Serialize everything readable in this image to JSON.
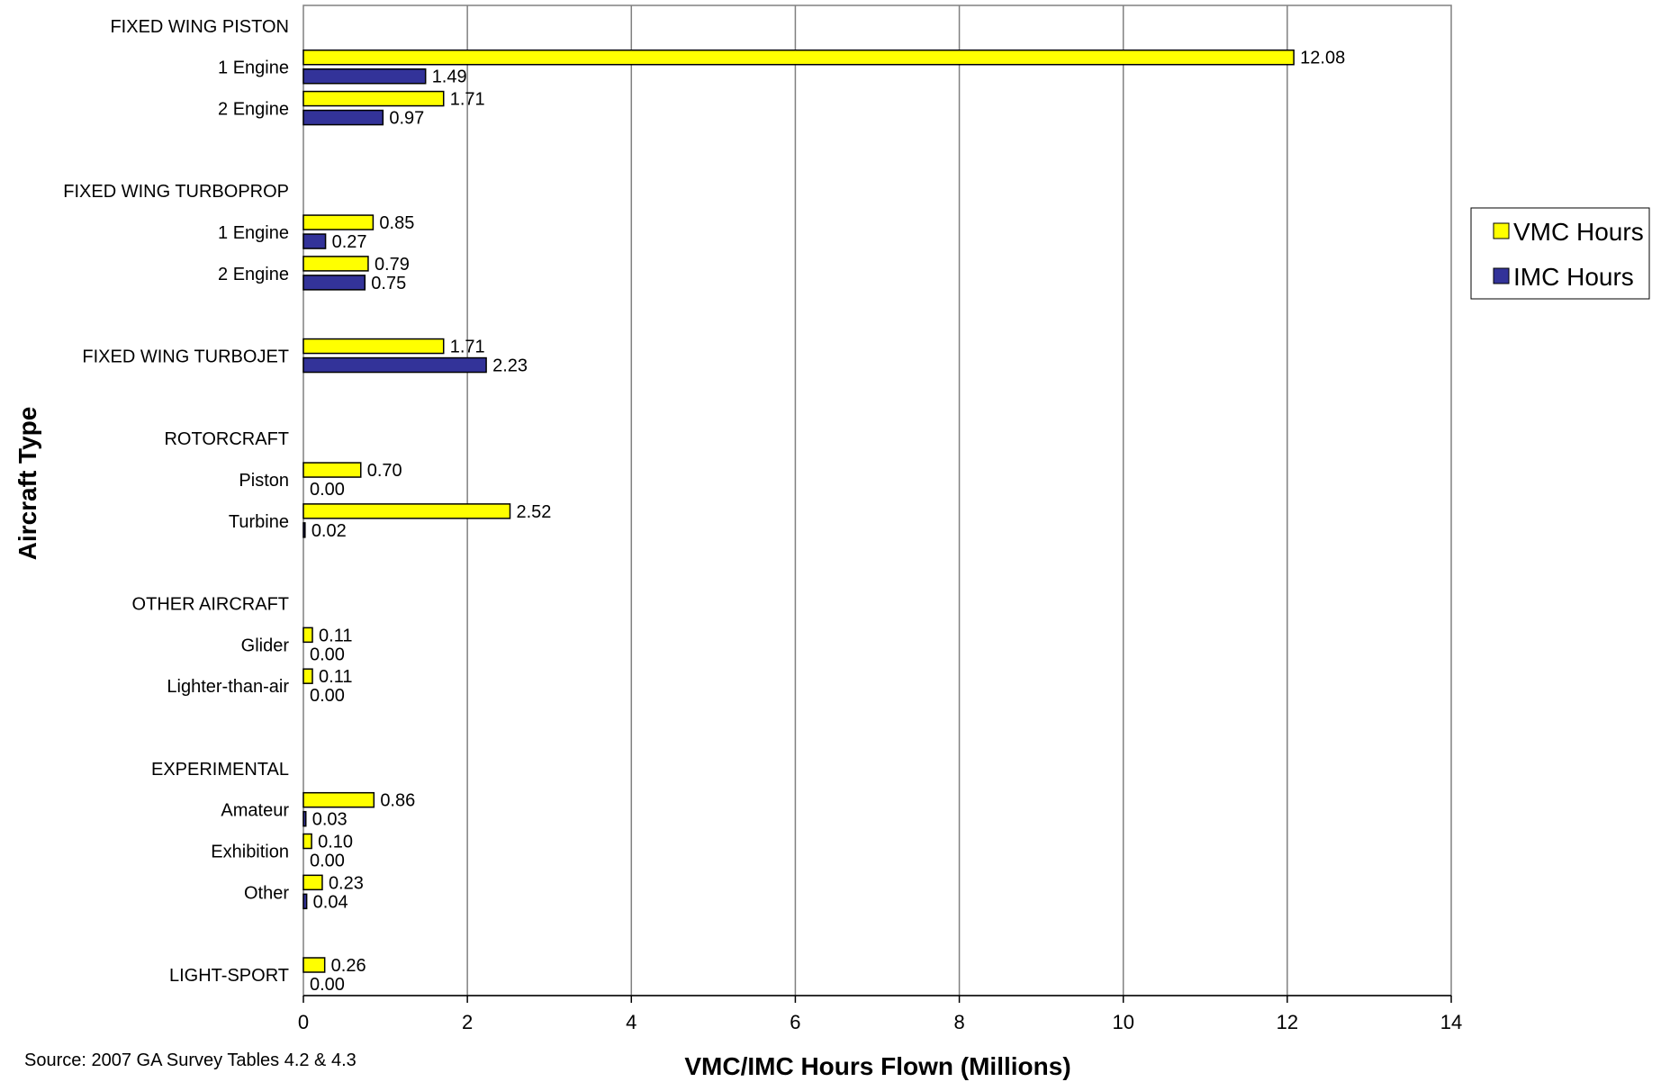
{
  "chart_data": {
    "type": "bar",
    "orientation": "horizontal",
    "title": "",
    "xlabel": "VMC/IMC Hours Flown (Millions)",
    "ylabel": "Aircraft Type",
    "xlim": [
      0,
      14
    ],
    "xticks": [
      0,
      2,
      4,
      6,
      8,
      10,
      12,
      14
    ],
    "grid": "vertical",
    "legend_position": "right",
    "value_format_decimals": 2,
    "source": "Source: 2007 GA Survey Tables 4.2 & 4.3",
    "colors": {
      "VMC Hours": "#ffff00",
      "IMC Hours": "#333399"
    },
    "categories": [
      "FIXED WING PISTON",
      "1 Engine",
      "2 Engine",
      "",
      "FIXED WING TURBOPROP",
      "1 Engine",
      "2 Engine",
      "",
      "FIXED WING TURBOJET",
      "",
      "ROTORCRAFT",
      "Piston",
      "Turbine",
      "",
      "OTHER AIRCRAFT",
      "Glider",
      "Lighter-than-air",
      "",
      "EXPERIMENTAL",
      "Amateur",
      "Exhibition",
      "Other",
      "",
      "LIGHT-SPORT"
    ],
    "series": [
      {
        "name": "VMC Hours",
        "values": [
          null,
          12.08,
          1.71,
          null,
          null,
          0.85,
          0.79,
          null,
          1.71,
          null,
          null,
          0.7,
          2.52,
          null,
          null,
          0.11,
          0.11,
          null,
          null,
          0.86,
          0.1,
          0.23,
          null,
          0.26
        ]
      },
      {
        "name": "IMC Hours",
        "values": [
          null,
          1.49,
          0.97,
          null,
          null,
          0.27,
          0.75,
          null,
          2.23,
          null,
          null,
          0.0,
          0.02,
          null,
          null,
          0.0,
          0.0,
          null,
          null,
          0.03,
          0.0,
          0.04,
          null,
          0.0
        ]
      }
    ]
  }
}
